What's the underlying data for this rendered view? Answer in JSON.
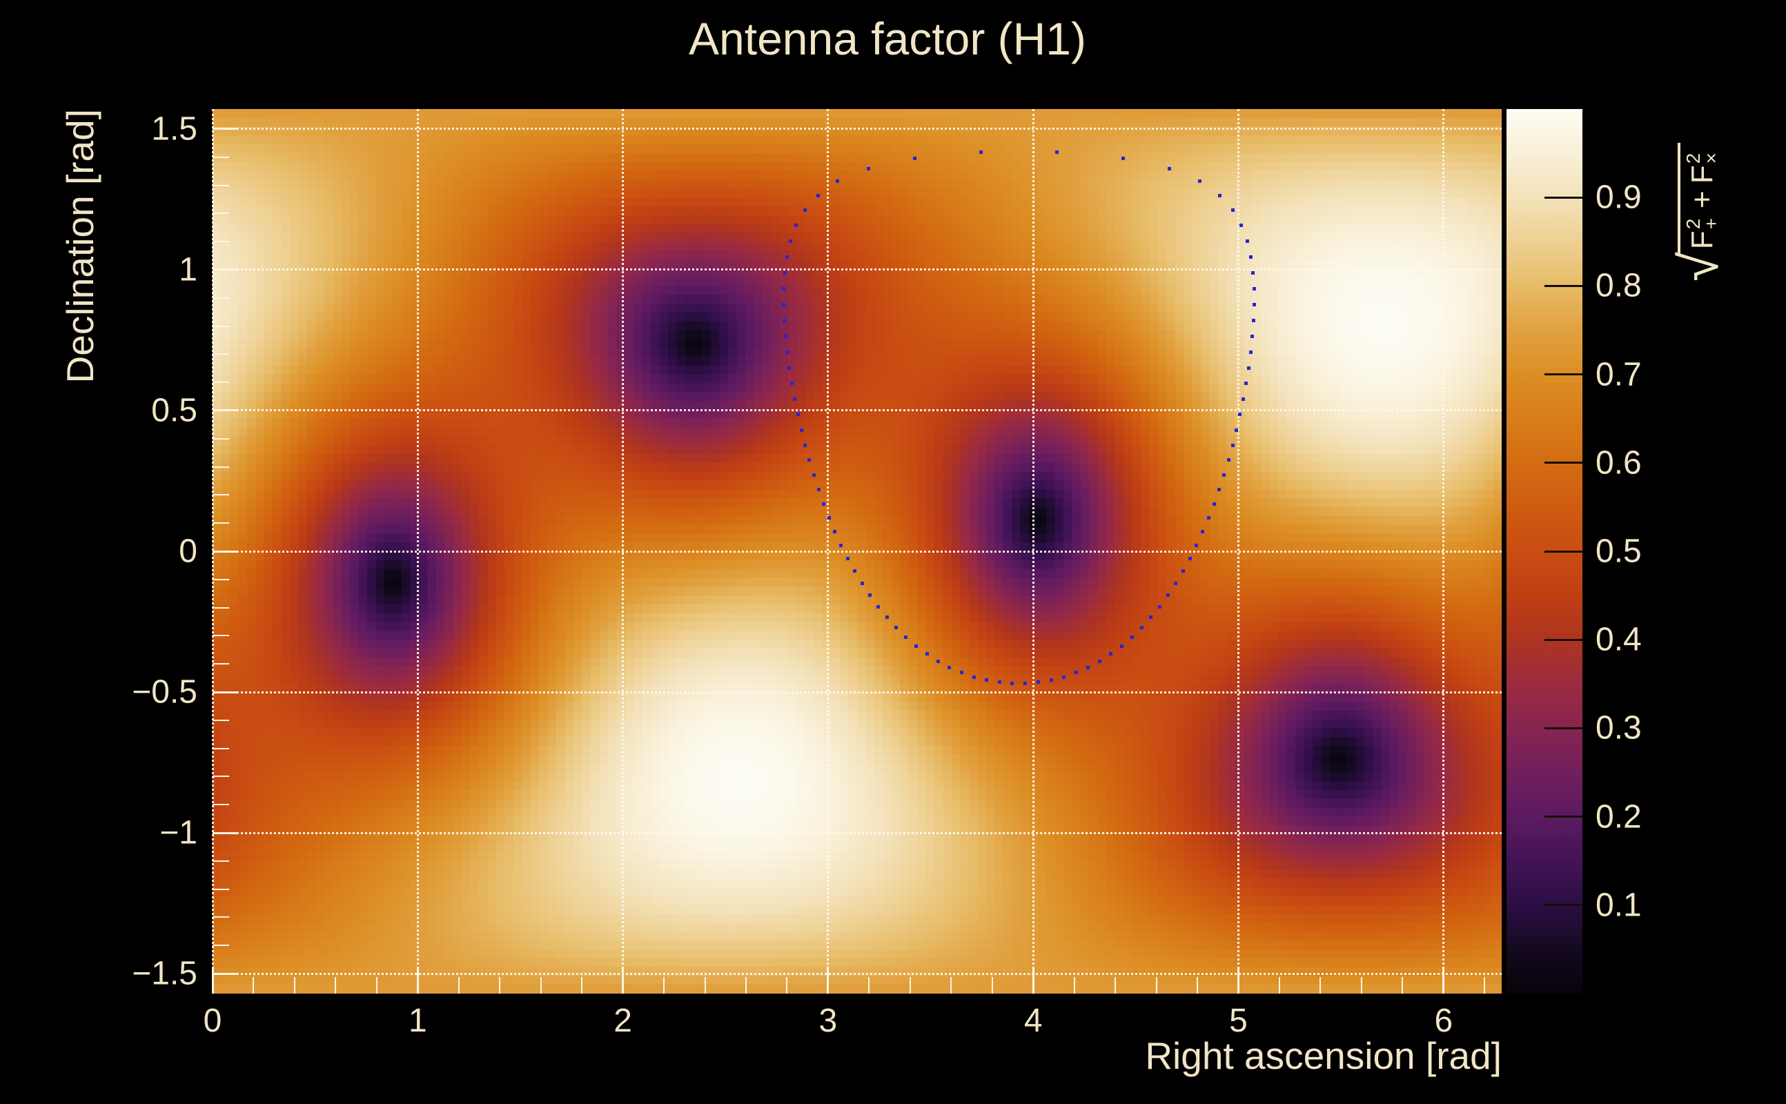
{
  "title": "Antenna factor (H1)",
  "axes": {
    "x_title": "Right ascension [rad]",
    "y_title": "Declination [rad]"
  },
  "colorbar": {
    "formula": {
      "radical": "√",
      "f1": "F",
      "f1_sup": "2",
      "f1_sub": "+",
      "op": "+",
      "f2": "F",
      "f2_sup": "2",
      "f2_sub": "×"
    },
    "tick_labels": [
      "0.1",
      "0.2",
      "0.3",
      "0.4",
      "0.5",
      "0.6",
      "0.7",
      "0.8",
      "0.9"
    ]
  },
  "chart_data": {
    "type": "heatmap",
    "title": "Antenna factor (H1)",
    "xlabel": "Right ascension [rad]",
    "ylabel": "Declination [rad]",
    "zlabel": "sqrt(F_plus^2 + F_cross^2)",
    "x_range": [
      0,
      6.283185
    ],
    "y_range": [
      -1.570796,
      1.570796
    ],
    "z_range": [
      0,
      1
    ],
    "grid": true,
    "x_major_ticks": [
      {
        "v": 0,
        "label": "0"
      },
      {
        "v": 1,
        "label": "1"
      },
      {
        "v": 2,
        "label": "2"
      },
      {
        "v": 3,
        "label": "3"
      },
      {
        "v": 4,
        "label": "4"
      },
      {
        "v": 5,
        "label": "5"
      },
      {
        "v": 6,
        "label": "6"
      }
    ],
    "x_minor_step": 0.2,
    "y_major_ticks": [
      {
        "v": 1.5,
        "label": "1.5"
      },
      {
        "v": 1,
        "label": "1"
      },
      {
        "v": 0.5,
        "label": "0.5"
      },
      {
        "v": 0,
        "label": "0"
      },
      {
        "v": -0.5,
        "label": "−0.5"
      },
      {
        "v": -1,
        "label": "−1"
      },
      {
        "v": -1.5,
        "label": "−1.5"
      }
    ],
    "y_minor_step": 0.1,
    "colorbar_ticks": [
      {
        "v": 0.1,
        "label": "0.1"
      },
      {
        "v": 0.2,
        "label": "0.2"
      },
      {
        "v": 0.3,
        "label": "0.3"
      },
      {
        "v": 0.4,
        "label": "0.4"
      },
      {
        "v": 0.5,
        "label": "0.5"
      },
      {
        "v": 0.6,
        "label": "0.6"
      },
      {
        "v": 0.7,
        "label": "0.7"
      },
      {
        "v": 0.8,
        "label": "0.8"
      },
      {
        "v": 0.9,
        "label": "0.9"
      }
    ],
    "grid_bins": {
      "nx": 150,
      "ny": 100
    },
    "detector": {
      "name": "H1",
      "zenith_ra": 5.711,
      "zenith_dec": 0.819,
      "null_anchor_ra": 0.88,
      "null_anchor_dec": -0.11
    },
    "pattern_minima_radec": [
      [
        0.88,
        -0.11
      ],
      [
        2.35,
        0.74
      ],
      [
        4.02,
        0.11
      ],
      [
        5.49,
        -0.74
      ]
    ],
    "pattern_maxima_radec": [
      [
        5.71,
        0.82
      ],
      [
        2.57,
        -0.82
      ]
    ],
    "ring": {
      "center_ra": 3.93,
      "center_dec": 0.475,
      "radius_rad": 0.945,
      "n_points": 90,
      "dot_color": "#2626d2"
    },
    "palette": [
      [
        0.0,
        "#060309"
      ],
      [
        0.05,
        "#150a20"
      ],
      [
        0.1,
        "#2b0e44"
      ],
      [
        0.15,
        "#441357"
      ],
      [
        0.2,
        "#5c1a60"
      ],
      [
        0.25,
        "#711f5c"
      ],
      [
        0.3,
        "#872550"
      ],
      [
        0.35,
        "#9c2b3f"
      ],
      [
        0.4,
        "#ae3420"
      ],
      [
        0.45,
        "#bf3f14"
      ],
      [
        0.5,
        "#c94d12"
      ],
      [
        0.55,
        "#cf5c11"
      ],
      [
        0.6,
        "#d36c12"
      ],
      [
        0.65,
        "#d87d1b"
      ],
      [
        0.7,
        "#dc8e24"
      ],
      [
        0.75,
        "#e1a140"
      ],
      [
        0.8,
        "#e7bc68"
      ],
      [
        0.85,
        "#eed092"
      ],
      [
        0.9,
        "#f3e2ba"
      ],
      [
        0.95,
        "#f9f0d8"
      ],
      [
        1.0,
        "#fdfcf3"
      ]
    ],
    "grid_color": "#fffbee",
    "tick_color": "#fcf5e2",
    "text_color": "#f1e5c6",
    "background_color": "#000000"
  }
}
